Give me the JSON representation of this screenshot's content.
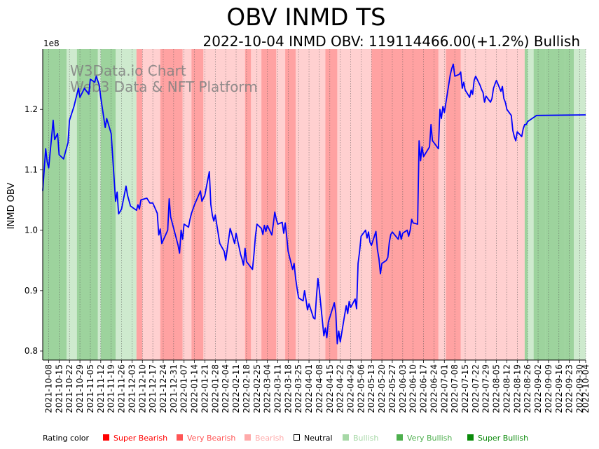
{
  "title": "OBV INMD TS",
  "subtitle": "2022-10-04 INMD OBV: 119114466.00(+1.2%) Bullish",
  "watermark": [
    "W3Data.io Chart",
    "Web3 Data & NFT Platform"
  ],
  "ylabel": "INMD OBV",
  "y_exponent": "1e8",
  "legend_title": "Rating color",
  "legend": [
    {
      "label": "Super Bearish",
      "color": "#ff0000"
    },
    {
      "label": "Very Bearish",
      "color": "#ff5555"
    },
    {
      "label": "Bearish",
      "color": "#ffaaaa"
    },
    {
      "label": "Neutral",
      "color": "#000000",
      "hollow": true
    },
    {
      "label": "Bullish",
      "color": "#a6d8a6"
    },
    {
      "label": "Very Bullish",
      "color": "#4daf4d"
    },
    {
      "label": "Super Bullish",
      "color": "#0a8a0a"
    }
  ],
  "chart_data": {
    "type": "line",
    "title": "OBV INMD TS",
    "xlabel": "",
    "ylabel": "INMD OBV",
    "x_start": "2021-10-04",
    "x_end": "2022-10-04",
    "ylim": [
      0.785,
      1.3
    ],
    "y_unit": "1e8",
    "yticks": [
      0.8,
      0.9,
      1.0,
      1.1,
      1.2
    ],
    "xticks": [
      "2021-10-08",
      "2021-10-15",
      "2021-10-22",
      "2021-10-29",
      "2021-11-05",
      "2021-11-12",
      "2021-11-19",
      "2021-11-26",
      "2021-12-03",
      "2021-12-10",
      "2021-12-17",
      "2021-12-24",
      "2021-12-31",
      "2022-01-07",
      "2022-01-14",
      "2022-01-21",
      "2022-01-28",
      "2022-02-04",
      "2022-02-11",
      "2022-02-18",
      "2022-02-25",
      "2022-03-04",
      "2022-03-11",
      "2022-03-18",
      "2022-03-25",
      "2022-04-01",
      "2022-04-08",
      "2022-04-15",
      "2022-04-22",
      "2022-04-29",
      "2022-05-06",
      "2022-05-13",
      "2022-05-20",
      "2022-05-27",
      "2022-06-03",
      "2022-06-10",
      "2022-06-17",
      "2022-06-24",
      "2022-07-01",
      "2022-07-08",
      "2022-07-15",
      "2022-07-22",
      "2022-07-29",
      "2022-08-05",
      "2022-08-12",
      "2022-08-19",
      "2022-08-26",
      "2022-09-02",
      "2022-09-09",
      "2022-09-16",
      "2022-09-23",
      "2022-09-30",
      "2022-10-04"
    ],
    "grid": "vertical dotted at each tick",
    "series": [
      {
        "name": "INMD OBV",
        "color": "#0000ff",
        "points": [
          [
            "2021-10-04",
            1.065
          ],
          [
            "2021-10-06",
            1.135
          ],
          [
            "2021-10-07",
            1.113
          ],
          [
            "2021-10-08",
            1.103
          ],
          [
            "2021-10-11",
            1.182
          ],
          [
            "2021-10-12",
            1.15
          ],
          [
            "2021-10-14",
            1.16
          ],
          [
            "2021-10-15",
            1.125
          ],
          [
            "2021-10-18",
            1.118
          ],
          [
            "2021-10-21",
            1.145
          ],
          [
            "2021-10-22",
            1.182
          ],
          [
            "2021-10-25",
            1.205
          ],
          [
            "2021-10-27",
            1.225
          ],
          [
            "2021-10-28",
            1.235
          ],
          [
            "2021-10-29",
            1.22
          ],
          [
            "2021-11-01",
            1.235
          ],
          [
            "2021-11-04",
            1.225
          ],
          [
            "2021-11-05",
            1.25
          ],
          [
            "2021-11-08",
            1.245
          ],
          [
            "2021-11-09",
            1.255
          ],
          [
            "2021-11-11",
            1.24
          ],
          [
            "2021-11-12",
            1.22
          ],
          [
            "2021-11-15",
            1.17
          ],
          [
            "2021-11-16",
            1.185
          ],
          [
            "2021-11-19",
            1.16
          ],
          [
            "2021-11-22",
            1.048
          ],
          [
            "2021-11-23",
            1.063
          ],
          [
            "2021-11-24",
            1.027
          ],
          [
            "2021-11-26",
            1.035
          ],
          [
            "2021-11-29",
            1.073
          ],
          [
            "2021-11-30",
            1.058
          ],
          [
            "2021-12-02",
            1.04
          ],
          [
            "2021-12-06",
            1.033
          ],
          [
            "2021-12-07",
            1.042
          ],
          [
            "2021-12-08",
            1.035
          ],
          [
            "2021-12-09",
            1.05
          ],
          [
            "2021-12-13",
            1.053
          ],
          [
            "2021-12-15",
            1.045
          ],
          [
            "2021-12-17",
            1.045
          ],
          [
            "2021-12-20",
            1.028
          ],
          [
            "2021-12-21",
            0.992
          ],
          [
            "2021-12-22",
            1.002
          ],
          [
            "2021-12-23",
            0.978
          ],
          [
            "2021-12-27",
            1.0
          ],
          [
            "2021-12-28",
            1.052
          ],
          [
            "2021-12-29",
            1.022
          ],
          [
            "2022-01-03",
            0.975
          ],
          [
            "2022-01-04",
            0.962
          ],
          [
            "2022-01-05",
            1.0
          ],
          [
            "2022-01-06",
            0.985
          ],
          [
            "2022-01-07",
            1.01
          ],
          [
            "2022-01-10",
            1.005
          ],
          [
            "2022-01-11",
            1.018
          ],
          [
            "2022-01-12",
            1.028
          ],
          [
            "2022-01-14",
            1.042
          ],
          [
            "2022-01-18",
            1.065
          ],
          [
            "2022-01-19",
            1.048
          ],
          [
            "2022-01-21",
            1.058
          ],
          [
            "2022-01-24",
            1.097
          ],
          [
            "2022-01-25",
            1.043
          ],
          [
            "2022-01-26",
            1.025
          ],
          [
            "2022-01-27",
            1.015
          ],
          [
            "2022-01-28",
            1.025
          ],
          [
            "2022-01-31",
            0.978
          ],
          [
            "2022-02-03",
            0.965
          ],
          [
            "2022-02-04",
            0.95
          ],
          [
            "2022-02-07",
            1.003
          ],
          [
            "2022-02-08",
            0.995
          ],
          [
            "2022-02-10",
            0.978
          ],
          [
            "2022-02-11",
            0.995
          ],
          [
            "2022-02-14",
            0.96
          ],
          [
            "2022-02-15",
            0.952
          ],
          [
            "2022-02-16",
            0.942
          ],
          [
            "2022-02-17",
            0.97
          ],
          [
            "2022-02-18",
            0.948
          ],
          [
            "2022-02-22",
            0.935
          ],
          [
            "2022-02-23",
            0.96
          ],
          [
            "2022-02-24",
            0.99
          ],
          [
            "2022-02-25",
            1.01
          ],
          [
            "2022-02-28",
            1.003
          ],
          [
            "2022-03-01",
            0.993
          ],
          [
            "2022-03-02",
            1.008
          ],
          [
            "2022-03-03",
            0.998
          ],
          [
            "2022-03-04",
            1.008
          ],
          [
            "2022-03-07",
            0.992
          ],
          [
            "2022-03-08",
            1.01
          ],
          [
            "2022-03-09",
            1.03
          ],
          [
            "2022-03-10",
            1.018
          ],
          [
            "2022-03-11",
            1.01
          ],
          [
            "2022-03-14",
            1.013
          ],
          [
            "2022-03-15",
            0.995
          ],
          [
            "2022-03-16",
            1.012
          ],
          [
            "2022-03-17",
            0.99
          ],
          [
            "2022-03-18",
            0.965
          ],
          [
            "2022-03-21",
            0.935
          ],
          [
            "2022-03-22",
            0.945
          ],
          [
            "2022-03-23",
            0.92
          ],
          [
            "2022-03-24",
            0.903
          ],
          [
            "2022-03-25",
            0.888
          ],
          [
            "2022-03-28",
            0.883
          ],
          [
            "2022-03-29",
            0.9
          ],
          [
            "2022-03-30",
            0.885
          ],
          [
            "2022-03-31",
            0.868
          ],
          [
            "2022-04-01",
            0.878
          ],
          [
            "2022-04-04",
            0.855
          ],
          [
            "2022-04-05",
            0.853
          ],
          [
            "2022-04-06",
            0.89
          ],
          [
            "2022-04-07",
            0.92
          ],
          [
            "2022-04-08",
            0.9
          ],
          [
            "2022-04-11",
            0.825
          ],
          [
            "2022-04-12",
            0.838
          ],
          [
            "2022-04-13",
            0.822
          ],
          [
            "2022-04-14",
            0.848
          ],
          [
            "2022-04-18",
            0.88
          ],
          [
            "2022-04-19",
            0.863
          ],
          [
            "2022-04-20",
            0.812
          ],
          [
            "2022-04-21",
            0.833
          ],
          [
            "2022-04-22",
            0.815
          ],
          [
            "2022-04-25",
            0.86
          ],
          [
            "2022-04-26",
            0.875
          ],
          [
            "2022-04-27",
            0.862
          ],
          [
            "2022-04-28",
            0.882
          ],
          [
            "2022-04-29",
            0.872
          ],
          [
            "2022-05-02",
            0.886
          ],
          [
            "2022-05-03",
            0.87
          ],
          [
            "2022-05-04",
            0.945
          ],
          [
            "2022-05-05",
            0.965
          ],
          [
            "2022-05-06",
            0.99
          ],
          [
            "2022-05-09",
            1.0
          ],
          [
            "2022-05-10",
            0.987
          ],
          [
            "2022-05-11",
            0.997
          ],
          [
            "2022-05-12",
            0.98
          ],
          [
            "2022-05-13",
            0.975
          ],
          [
            "2022-05-16",
            0.998
          ],
          [
            "2022-05-17",
            0.968
          ],
          [
            "2022-05-18",
            0.953
          ],
          [
            "2022-05-19",
            0.928
          ],
          [
            "2022-05-20",
            0.945
          ],
          [
            "2022-05-23",
            0.95
          ],
          [
            "2022-05-24",
            0.955
          ],
          [
            "2022-05-25",
            0.98
          ],
          [
            "2022-05-26",
            0.993
          ],
          [
            "2022-05-27",
            0.997
          ],
          [
            "2022-05-31",
            0.985
          ],
          [
            "2022-06-01",
            0.998
          ],
          [
            "2022-06-02",
            0.985
          ],
          [
            "2022-06-03",
            0.995
          ],
          [
            "2022-06-06",
            1.0
          ],
          [
            "2022-06-07",
            0.99
          ],
          [
            "2022-06-08",
            1.0
          ],
          [
            "2022-06-09",
            1.018
          ],
          [
            "2022-06-10",
            1.012
          ],
          [
            "2022-06-13",
            1.01
          ],
          [
            "2022-06-14",
            1.148
          ],
          [
            "2022-06-15",
            1.115
          ],
          [
            "2022-06-16",
            1.138
          ],
          [
            "2022-06-17",
            1.122
          ],
          [
            "2022-06-21",
            1.138
          ],
          [
            "2022-06-22",
            1.175
          ],
          [
            "2022-06-23",
            1.148
          ],
          [
            "2022-06-24",
            1.145
          ],
          [
            "2022-06-27",
            1.135
          ],
          [
            "2022-06-28",
            1.2
          ],
          [
            "2022-06-29",
            1.185
          ],
          [
            "2022-06-30",
            1.205
          ],
          [
            "2022-07-01",
            1.195
          ],
          [
            "2022-07-05",
            1.258
          ],
          [
            "2022-07-06",
            1.268
          ],
          [
            "2022-07-07",
            1.275
          ],
          [
            "2022-07-08",
            1.255
          ],
          [
            "2022-07-11",
            1.258
          ],
          [
            "2022-07-12",
            1.262
          ],
          [
            "2022-07-13",
            1.235
          ],
          [
            "2022-07-14",
            1.245
          ],
          [
            "2022-07-15",
            1.232
          ],
          [
            "2022-07-18",
            1.22
          ],
          [
            "2022-07-19",
            1.232
          ],
          [
            "2022-07-20",
            1.225
          ],
          [
            "2022-07-21",
            1.248
          ],
          [
            "2022-07-22",
            1.255
          ],
          [
            "2022-07-25",
            1.24
          ],
          [
            "2022-07-26",
            1.233
          ],
          [
            "2022-07-27",
            1.228
          ],
          [
            "2022-07-28",
            1.212
          ],
          [
            "2022-07-29",
            1.222
          ],
          [
            "2022-08-01",
            1.212
          ],
          [
            "2022-08-02",
            1.218
          ],
          [
            "2022-08-03",
            1.235
          ],
          [
            "2022-08-04",
            1.242
          ],
          [
            "2022-08-05",
            1.248
          ],
          [
            "2022-08-08",
            1.23
          ],
          [
            "2022-08-09",
            1.238
          ],
          [
            "2022-08-10",
            1.218
          ],
          [
            "2022-08-11",
            1.212
          ],
          [
            "2022-08-12",
            1.2
          ],
          [
            "2022-08-15",
            1.19
          ],
          [
            "2022-08-16",
            1.165
          ],
          [
            "2022-08-17",
            1.155
          ],
          [
            "2022-08-18",
            1.148
          ],
          [
            "2022-08-19",
            1.163
          ],
          [
            "2022-08-22",
            1.155
          ],
          [
            "2022-08-23",
            1.168
          ],
          [
            "2022-08-24",
            1.175
          ],
          [
            "2022-08-25",
            1.175
          ],
          [
            "2022-08-26",
            1.18
          ],
          [
            "2022-09-01",
            1.19
          ],
          [
            "2022-10-04",
            1.191
          ]
        ]
      }
    ],
    "rating_bands": [
      [
        "2021-10-04",
        "2021-10-20",
        "Very Bullish"
      ],
      [
        "2021-10-20",
        "2021-10-27",
        "Bullish"
      ],
      [
        "2021-10-27",
        "2021-11-10",
        "Very Bullish"
      ],
      [
        "2021-11-10",
        "2021-11-12",
        "Bullish"
      ],
      [
        "2021-11-12",
        "2021-11-22",
        "Very Bullish"
      ],
      [
        "2021-11-22",
        "2021-12-06",
        "Bullish"
      ],
      [
        "2021-12-06",
        "2021-12-10",
        "Very Bearish"
      ],
      [
        "2021-12-10",
        "2021-12-22",
        "Bearish"
      ],
      [
        "2021-12-22",
        "2022-01-06",
        "Very Bearish"
      ],
      [
        "2022-01-06",
        "2022-01-12",
        "Bearish"
      ],
      [
        "2022-01-12",
        "2022-01-20",
        "Very Bearish"
      ],
      [
        "2022-01-20",
        "2022-01-28",
        "Bearish"
      ],
      [
        "2022-01-28",
        "2022-02-17",
        "Bearish"
      ],
      [
        "2022-02-17",
        "2022-02-21",
        "Very Bearish"
      ],
      [
        "2022-02-21",
        "2022-02-28",
        "Bearish"
      ],
      [
        "2022-02-28",
        "2022-03-10",
        "Very Bearish"
      ],
      [
        "2022-03-10",
        "2022-03-16",
        "Bearish"
      ],
      [
        "2022-03-16",
        "2022-03-23",
        "Very Bearish"
      ],
      [
        "2022-03-23",
        "2022-04-12",
        "Bearish"
      ],
      [
        "2022-04-12",
        "2022-04-20",
        "Very Bearish"
      ],
      [
        "2022-04-20",
        "2022-05-03",
        "Bearish"
      ],
      [
        "2022-05-03",
        "2022-05-13",
        "Bearish"
      ],
      [
        "2022-05-13",
        "2022-06-27",
        "Very Bearish"
      ],
      [
        "2022-06-27",
        "2022-07-02",
        "Bearish"
      ],
      [
        "2022-07-02",
        "2022-07-12",
        "Very Bearish"
      ],
      [
        "2022-07-12",
        "2022-07-18",
        "Bearish"
      ],
      [
        "2022-07-18",
        "2022-07-27",
        "Bearish"
      ],
      [
        "2022-07-27",
        "2022-08-24",
        "Bearish"
      ],
      [
        "2022-08-24",
        "2022-08-26",
        "Very Bullish"
      ],
      [
        "2022-08-26",
        "2022-08-30",
        "Bullish"
      ],
      [
        "2022-08-30",
        "2022-09-07",
        "Very Bullish"
      ],
      [
        "2022-09-07",
        "2022-09-20",
        "Very Bullish"
      ],
      [
        "2022-09-20",
        "2022-09-26",
        "Very Bullish"
      ],
      [
        "2022-09-26",
        "2022-10-04",
        "Bullish"
      ]
    ]
  }
}
